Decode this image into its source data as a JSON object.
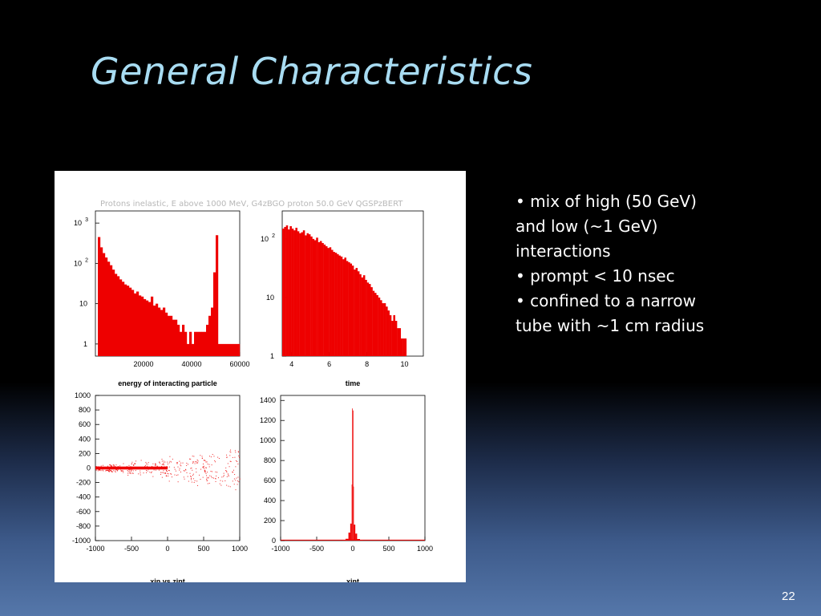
{
  "slide": {
    "title": "General Characteristics",
    "bullets": [
      "• mix of high (50 GeV)",
      "and low (~1 GeV)",
      "interactions",
      "• prompt < 10 nsec",
      "• confined to a narrow",
      "tube with ~1 cm radius"
    ],
    "page_number": "22"
  },
  "figure": {
    "title": "Protons inelastic, E above 1000 MeV,  G4zBGO proton 50.0 GeV QGSPzBERT"
  },
  "colors": {
    "histogram": "#ee0000",
    "title_text": "#a8dcf2"
  },
  "chart_data": [
    {
      "type": "bar",
      "xlabel": "energy of interacting particle",
      "ylabel": "",
      "log_y": true,
      "xlim": [
        0,
        60000
      ],
      "ylim": [
        0.5,
        2000
      ],
      "xticks": [
        "20000",
        "40000",
        "60000"
      ],
      "yticks": [
        {
          "base": "1",
          "exp": ""
        },
        {
          "base": "10",
          "exp": ""
        },
        {
          "base": "10",
          "exp": "2"
        },
        {
          "base": "10",
          "exp": "3"
        }
      ],
      "x_start": 1000,
      "bin_width": 1000,
      "values": [
        450,
        250,
        180,
        140,
        110,
        90,
        70,
        55,
        48,
        40,
        35,
        30,
        28,
        25,
        22,
        18,
        20,
        16,
        15,
        13,
        12,
        11,
        15,
        9,
        10,
        8,
        7,
        8,
        6,
        5,
        5,
        4,
        4,
        3,
        2,
        3,
        2,
        1,
        2,
        1,
        2,
        2,
        2,
        2,
        2,
        3,
        5,
        8,
        60,
        500,
        1,
        1,
        1,
        1,
        1,
        1,
        1,
        1,
        1
      ],
      "grid": false
    },
    {
      "type": "bar",
      "xlabel": "time",
      "ylabel": "",
      "log_y": true,
      "xlim": [
        3.5,
        11
      ],
      "ylim": [
        1,
        300
      ],
      "xticks": [
        "4",
        "6",
        "8",
        "10"
      ],
      "yticks": [
        {
          "base": "1",
          "exp": ""
        },
        {
          "base": "10",
          "exp": ""
        },
        {
          "base": "10",
          "exp": "2"
        }
      ],
      "x_start": 3.5,
      "bin_width": 0.1,
      "values": [
        150,
        160,
        170,
        145,
        165,
        150,
        140,
        155,
        135,
        125,
        130,
        140,
        115,
        125,
        120,
        110,
        100,
        95,
        105,
        88,
        92,
        85,
        80,
        75,
        70,
        72,
        65,
        60,
        58,
        55,
        52,
        50,
        45,
        48,
        42,
        40,
        38,
        35,
        30,
        32,
        28,
        25,
        22,
        24,
        20,
        18,
        17,
        15,
        13,
        12,
        11,
        10,
        9,
        8,
        8,
        7,
        6,
        5,
        4,
        5,
        4,
        3,
        3,
        2,
        2,
        2,
        1,
        1,
        1,
        1
      ],
      "grid": false
    },
    {
      "type": "scatter",
      "xlabel": "xin vs zint",
      "ylabel": "",
      "xlim": [
        -1000,
        1000
      ],
      "ylim": [
        -1000,
        1000
      ],
      "xticks": [
        "-1000",
        "-500",
        "0",
        "500",
        "1000"
      ],
      "yticks": [
        "-1000",
        "-800",
        "-600",
        "-400",
        "-200",
        "0",
        "200",
        "400",
        "600",
        "800",
        "1000"
      ],
      "band": {
        "y": 0,
        "x_from": -1000,
        "x_to": 0,
        "half_height": 20
      },
      "x_spread": {
        "x_from": -1000,
        "x_to": 1000,
        "max_y": 300
      },
      "grid": false
    },
    {
      "type": "bar",
      "xlabel": "xint",
      "ylabel": "",
      "log_y": false,
      "xlim": [
        -1000,
        1000
      ],
      "ylim": [
        0,
        1450
      ],
      "xticks": [
        "-1000",
        "-500",
        "0",
        "500",
        "1000"
      ],
      "yticks": [
        "0",
        "200",
        "400",
        "600",
        "800",
        "1000",
        "1200",
        "1400"
      ],
      "bins": [
        {
          "x0": -140,
          "x1": -100,
          "v": 4
        },
        {
          "x0": -100,
          "x1": -60,
          "v": 18
        },
        {
          "x0": -60,
          "x1": -35,
          "v": 80
        },
        {
          "x0": -35,
          "x1": -15,
          "v": 170
        },
        {
          "x0": -15,
          "x1": -8,
          "v": 560
        },
        {
          "x0": -8,
          "x1": 0,
          "v": 1320
        },
        {
          "x0": 0,
          "x1": 8,
          "v": 1300
        },
        {
          "x0": 8,
          "x1": 15,
          "v": 540
        },
        {
          "x0": 15,
          "x1": 35,
          "v": 160
        },
        {
          "x0": 35,
          "x1": 60,
          "v": 70
        },
        {
          "x0": 60,
          "x1": 100,
          "v": 16
        },
        {
          "x0": 100,
          "x1": 140,
          "v": 4
        }
      ],
      "grid": false
    }
  ]
}
